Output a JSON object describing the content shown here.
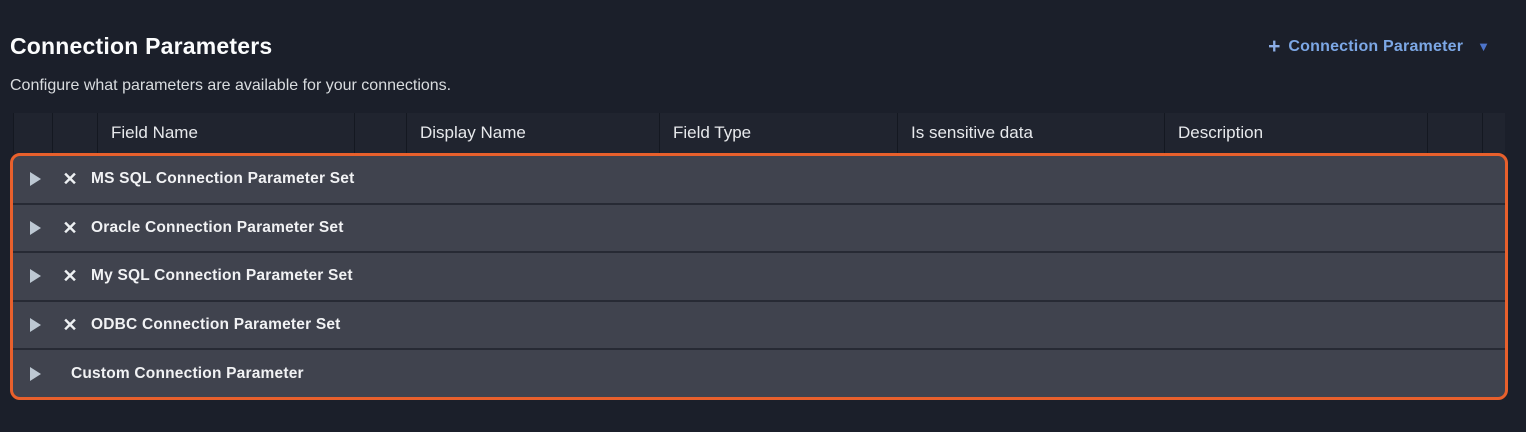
{
  "page": {
    "title": "Connection Parameters",
    "subtitle": "Configure what parameters are available for your connections."
  },
  "toolbar": {
    "plus_icon": "+",
    "add_button_label": "Connection Parameter",
    "caret_icon": "▼"
  },
  "table": {
    "columns": {
      "expand": "",
      "delete": "",
      "field_name": "Field Name",
      "spacer": "",
      "display_name": "Display Name",
      "field_type": "Field Type",
      "is_sensitive": "Is sensitive data",
      "description": "Description",
      "trailing": ""
    },
    "delete_icon_glyph": "✕",
    "rows": [
      {
        "label": "MS SQL Connection Parameter Set",
        "expandable": true,
        "deletable": true
      },
      {
        "label": "Oracle Connection Parameter Set",
        "expandable": true,
        "deletable": true
      },
      {
        "label": "My SQL Connection Parameter Set",
        "expandable": true,
        "deletable": true
      },
      {
        "label": "ODBC Connection Parameter Set",
        "expandable": true,
        "deletable": true
      },
      {
        "label": "Custom Connection Parameter",
        "expandable": true,
        "deletable": false
      }
    ]
  },
  "colors": {
    "page_background": "#1b1f2a",
    "header_background": "#20242f",
    "row_background": "#40434e",
    "accent_orange": "#e8602c",
    "link_blue": "#7ca7e5"
  }
}
